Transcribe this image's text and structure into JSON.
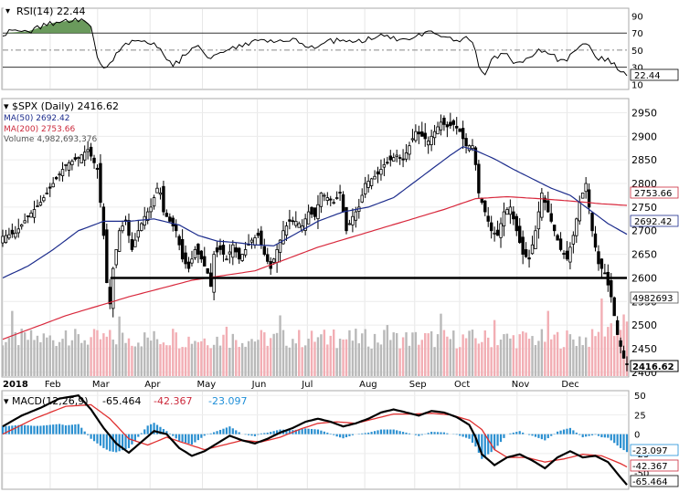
{
  "chart_data": {
    "type": "stock_chart",
    "symbol_label": "$SPX (Daily) 2416.62",
    "price_axis": {
      "ticks": [
        2400,
        2450,
        2500,
        2550,
        2600,
        2650,
        2700,
        2750,
        2800,
        2850,
        2900,
        2950
      ],
      "range": [
        2392,
        2978
      ]
    },
    "rsi_axis": {
      "ticks": [
        10,
        30,
        50,
        70,
        90
      ],
      "range": [
        5,
        98
      ]
    },
    "macd_axis": {
      "ticks": [
        50,
        25,
        0,
        -25,
        -50
      ],
      "range": [
        -70,
        55
      ]
    },
    "x_labels": [
      "2018",
      "Feb",
      "Mar",
      "Apr",
      "May",
      "Jun",
      "Jul",
      "Aug",
      "Sep",
      "Oct",
      "Nov",
      "Dec"
    ],
    "legend": {
      "rsi": "RSI(14) 22.44",
      "ma50": "MA(50) 2692.42",
      "ma200": "MA(200) 2753.66",
      "volume": "Volume 4,982,693,376",
      "macd_title": "MACD(12,26,9)",
      "macd_v1": "-65.464",
      "macd_v2": "-42.367",
      "macd_v3": "-23.097"
    },
    "last_values": {
      "price": "2416.62",
      "ma200": "2753.66",
      "ma50": "2692.42",
      "volume": "4982693",
      "rsi": "22.44",
      "macd_hist": "-23.097",
      "macd_signal": "-42.367",
      "macd": "-65.464"
    },
    "support_line": {
      "value": 2600,
      "from_month": "Mar",
      "to_month": "Dec"
    },
    "price_path": [
      [
        0,
        2688
      ],
      [
        4,
        2695
      ],
      [
        8,
        2730
      ],
      [
        12,
        2760
      ],
      [
        16,
        2800
      ],
      [
        20,
        2840
      ],
      [
        24,
        2855
      ],
      [
        27,
        2872
      ],
      [
        30,
        2830
      ],
      [
        31,
        2760
      ],
      [
        32,
        2690
      ],
      [
        33,
        2590
      ],
      [
        34,
        2545
      ],
      [
        35,
        2620
      ],
      [
        37,
        2700
      ],
      [
        39,
        2720
      ],
      [
        41,
        2660
      ],
      [
        43,
        2700
      ],
      [
        45,
        2730
      ],
      [
        47,
        2750
      ],
      [
        49,
        2790
      ],
      [
        50,
        2780
      ],
      [
        51,
        2740
      ],
      [
        53,
        2720
      ],
      [
        55,
        2700
      ],
      [
        57,
        2640
      ],
      [
        59,
        2620
      ],
      [
        61,
        2660
      ],
      [
        63,
        2640
      ],
      [
        65,
        2610
      ],
      [
        66,
        2582
      ],
      [
        67,
        2650
      ],
      [
        69,
        2660
      ],
      [
        71,
        2640
      ],
      [
        73,
        2670
      ],
      [
        75,
        2640
      ],
      [
        77,
        2660
      ],
      [
        79,
        2680
      ],
      [
        81,
        2690
      ],
      [
        83,
        2650
      ],
      [
        85,
        2620
      ],
      [
        87,
        2660
      ],
      [
        89,
        2700
      ],
      [
        91,
        2720
      ],
      [
        93,
        2720
      ],
      [
        95,
        2710
      ],
      [
        97,
        2740
      ],
      [
        99,
        2730
      ],
      [
        101,
        2780
      ],
      [
        103,
        2770
      ],
      [
        105,
        2760
      ],
      [
        107,
        2780
      ],
      [
        109,
        2700
      ],
      [
        111,
        2730
      ],
      [
        113,
        2750
      ],
      [
        115,
        2800
      ],
      [
        117,
        2810
      ],
      [
        119,
        2820
      ],
      [
        121,
        2840
      ],
      [
        123,
        2850
      ],
      [
        125,
        2860
      ],
      [
        127,
        2850
      ],
      [
        129,
        2880
      ],
      [
        131,
        2910
      ],
      [
        133,
        2900
      ],
      [
        135,
        2890
      ],
      [
        137,
        2910
      ],
      [
        139,
        2930
      ],
      [
        141,
        2920
      ],
      [
        143,
        2925
      ],
      [
        145,
        2910
      ],
      [
        147,
        2880
      ],
      [
        149,
        2880
      ],
      [
        150,
        2840
      ],
      [
        151,
        2780
      ],
      [
        153,
        2740
      ],
      [
        155,
        2700
      ],
      [
        157,
        2690
      ],
      [
        159,
        2740
      ],
      [
        161,
        2750
      ],
      [
        163,
        2700
      ],
      [
        165,
        2650
      ],
      [
        167,
        2640
      ],
      [
        169,
        2700
      ],
      [
        171,
        2780
      ],
      [
        173,
        2740
      ],
      [
        175,
        2700
      ],
      [
        177,
        2660
      ],
      [
        179,
        2640
      ],
      [
        181,
        2690
      ],
      [
        183,
        2760
      ],
      [
        185,
        2800
      ],
      [
        187,
        2700
      ],
      [
        189,
        2630
      ],
      [
        191,
        2610
      ],
      [
        193,
        2560
      ],
      [
        195,
        2480
      ],
      [
        197,
        2430
      ],
      [
        198,
        2416.62
      ]
    ],
    "ma50_path": [
      [
        0,
        2600
      ],
      [
        8,
        2625
      ],
      [
        16,
        2660
      ],
      [
        24,
        2700
      ],
      [
        32,
        2720
      ],
      [
        40,
        2720
      ],
      [
        48,
        2725
      ],
      [
        56,
        2712
      ],
      [
        62,
        2690
      ],
      [
        68,
        2678
      ],
      [
        74,
        2675
      ],
      [
        80,
        2670
      ],
      [
        86,
        2668
      ],
      [
        92,
        2690
      ],
      [
        100,
        2720
      ],
      [
        108,
        2740
      ],
      [
        116,
        2750
      ],
      [
        124,
        2770
      ],
      [
        130,
        2800
      ],
      [
        136,
        2830
      ],
      [
        142,
        2860
      ],
      [
        146,
        2878
      ],
      [
        150,
        2870
      ],
      [
        156,
        2852
      ],
      [
        162,
        2830
      ],
      [
        168,
        2810
      ],
      [
        174,
        2790
      ],
      [
        180,
        2775
      ],
      [
        186,
        2745
      ],
      [
        192,
        2715
      ],
      [
        198,
        2692.42
      ]
    ],
    "ma200_path": [
      [
        0,
        2470
      ],
      [
        20,
        2520
      ],
      [
        40,
        2560
      ],
      [
        60,
        2595
      ],
      [
        80,
        2615
      ],
      [
        100,
        2665
      ],
      [
        120,
        2705
      ],
      [
        140,
        2745
      ],
      [
        150,
        2768
      ],
      [
        160,
        2772
      ],
      [
        170,
        2768
      ],
      [
        180,
        2763
      ],
      [
        190,
        2757
      ],
      [
        198,
        2753.66
      ]
    ],
    "rsi_path": [
      [
        0,
        70
      ],
      [
        8,
        72
      ],
      [
        16,
        82
      ],
      [
        22,
        85
      ],
      [
        26,
        85
      ],
      [
        28,
        78
      ],
      [
        30,
        40
      ],
      [
        32,
        30
      ],
      [
        34,
        32
      ],
      [
        36,
        45
      ],
      [
        40,
        60
      ],
      [
        44,
        62
      ],
      [
        48,
        58
      ],
      [
        52,
        40
      ],
      [
        54,
        32
      ],
      [
        58,
        44
      ],
      [
        62,
        55
      ],
      [
        66,
        40
      ],
      [
        68,
        48
      ],
      [
        72,
        52
      ],
      [
        76,
        56
      ],
      [
        80,
        62
      ],
      [
        84,
        58
      ],
      [
        88,
        60
      ],
      [
        92,
        64
      ],
      [
        96,
        56
      ],
      [
        100,
        54
      ],
      [
        104,
        60
      ],
      [
        108,
        62
      ],
      [
        112,
        58
      ],
      [
        116,
        63
      ],
      [
        120,
        66
      ],
      [
        124,
        64
      ],
      [
        128,
        60
      ],
      [
        132,
        66
      ],
      [
        136,
        70
      ],
      [
        140,
        64
      ],
      [
        144,
        60
      ],
      [
        148,
        65
      ],
      [
        150,
        50
      ],
      [
        151,
        30
      ],
      [
        153,
        24
      ],
      [
        155,
        38
      ],
      [
        159,
        46
      ],
      [
        162,
        36
      ],
      [
        166,
        40
      ],
      [
        170,
        50
      ],
      [
        174,
        44
      ],
      [
        178,
        36
      ],
      [
        182,
        52
      ],
      [
        186,
        56
      ],
      [
        188,
        40
      ],
      [
        192,
        38
      ],
      [
        196,
        26
      ],
      [
        198,
        22.44
      ]
    ],
    "macd_path": [
      [
        0,
        10
      ],
      [
        6,
        24
      ],
      [
        12,
        34
      ],
      [
        18,
        46
      ],
      [
        24,
        50
      ],
      [
        28,
        32
      ],
      [
        32,
        8
      ],
      [
        36,
        -12
      ],
      [
        40,
        -24
      ],
      [
        44,
        -10
      ],
      [
        48,
        4
      ],
      [
        52,
        0
      ],
      [
        56,
        -18
      ],
      [
        60,
        -28
      ],
      [
        64,
        -22
      ],
      [
        68,
        -12
      ],
      [
        72,
        -2
      ],
      [
        76,
        -8
      ],
      [
        80,
        -12
      ],
      [
        84,
        -6
      ],
      [
        88,
        2
      ],
      [
        92,
        8
      ],
      [
        96,
        16
      ],
      [
        100,
        20
      ],
      [
        104,
        16
      ],
      [
        108,
        10
      ],
      [
        112,
        14
      ],
      [
        116,
        20
      ],
      [
        120,
        28
      ],
      [
        124,
        32
      ],
      [
        128,
        28
      ],
      [
        132,
        24
      ],
      [
        136,
        30
      ],
      [
        140,
        28
      ],
      [
        144,
        22
      ],
      [
        148,
        12
      ],
      [
        150,
        -4
      ],
      [
        152,
        -26
      ],
      [
        156,
        -40
      ],
      [
        160,
        -30
      ],
      [
        164,
        -26
      ],
      [
        168,
        -34
      ],
      [
        172,
        -44
      ],
      [
        176,
        -30
      ],
      [
        180,
        -22
      ],
      [
        184,
        -30
      ],
      [
        188,
        -28
      ],
      [
        192,
        -36
      ],
      [
        196,
        -56
      ],
      [
        198,
        -65.464
      ]
    ],
    "signal_path": [
      [
        0,
        0
      ],
      [
        10,
        20
      ],
      [
        20,
        36
      ],
      [
        28,
        38
      ],
      [
        34,
        20
      ],
      [
        40,
        -6
      ],
      [
        46,
        -14
      ],
      [
        52,
        -4
      ],
      [
        58,
        -12
      ],
      [
        64,
        -20
      ],
      [
        70,
        -14
      ],
      [
        76,
        -8
      ],
      [
        82,
        -10
      ],
      [
        88,
        -4
      ],
      [
        94,
        6
      ],
      [
        100,
        14
      ],
      [
        106,
        16
      ],
      [
        112,
        14
      ],
      [
        118,
        20
      ],
      [
        124,
        26
      ],
      [
        130,
        26
      ],
      [
        136,
        27
      ],
      [
        142,
        25
      ],
      [
        148,
        18
      ],
      [
        152,
        6
      ],
      [
        156,
        -20
      ],
      [
        160,
        -30
      ],
      [
        166,
        -30
      ],
      [
        172,
        -36
      ],
      [
        178,
        -32
      ],
      [
        184,
        -26
      ],
      [
        190,
        -28
      ],
      [
        196,
        -38
      ],
      [
        198,
        -42.367
      ]
    ]
  }
}
